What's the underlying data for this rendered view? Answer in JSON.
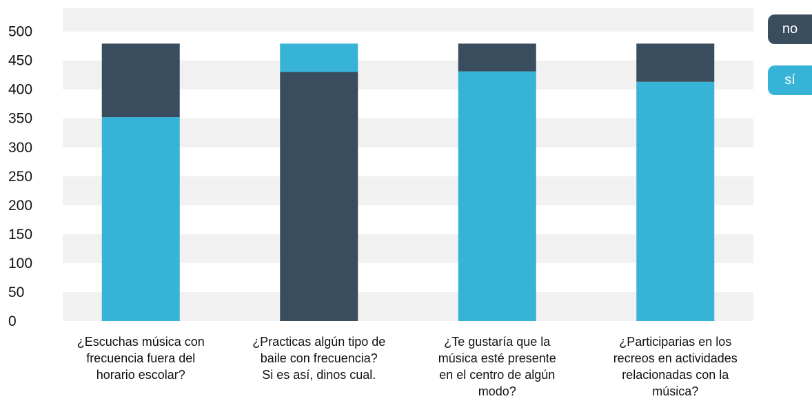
{
  "chart_data": {
    "type": "bar",
    "stacked": true,
    "categories": [
      "¿Escuchas música con\nfrecuencia fuera del\nhorario escolar?",
      "¿Practicas algún tipo de\nbaile con frecuencia?\nSi es así, dinos cual.",
      "¿Te gustaría que la\nmúsica esté presente\nen el centro de algún\nmodo?",
      "¿Participarias en los\nrecreos en actividades\nrelacionadas con la\nmúsica?"
    ],
    "series": [
      {
        "name": "sí",
        "color": "#36b3d7",
        "values": [
          352,
          49,
          431,
          413
        ]
      },
      {
        "name": "no",
        "color": "#3a4d5e",
        "values": [
          127,
          430,
          48,
          66
        ]
      }
    ],
    "stack_order": [
      [
        "sí",
        "no"
      ],
      [
        "no",
        "sí"
      ],
      [
        "sí",
        "no"
      ],
      [
        "sí",
        "no"
      ]
    ],
    "ylim": [
      0,
      500
    ],
    "yticks": [
      0,
      50,
      100,
      150,
      200,
      250,
      300,
      350,
      400,
      450,
      500
    ],
    "grid": "alternating horizontal bands",
    "legend_position": "top-right",
    "legend": [
      {
        "label": "no",
        "color": "#3a4d5e"
      },
      {
        "label": "sí",
        "color": "#36b3d7"
      }
    ]
  }
}
